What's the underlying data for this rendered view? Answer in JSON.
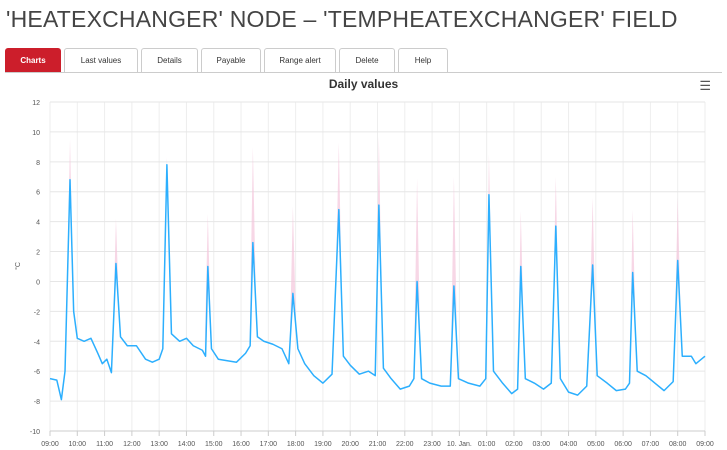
{
  "page": {
    "title": "'HEATEXCHANGER' NODE – 'TEMPHEATEXCHANGER' FIELD"
  },
  "tabs": [
    {
      "label": "Charts",
      "active": true
    },
    {
      "label": "Last values"
    },
    {
      "label": "Details"
    },
    {
      "label": "Payable"
    },
    {
      "label": "Range alert"
    },
    {
      "label": "Delete"
    },
    {
      "label": "Help"
    }
  ],
  "chart_data": {
    "type": "line",
    "title": "Daily values",
    "ylabel": "°C",
    "xlabel": "",
    "ylim": [
      -10,
      12
    ],
    "yticks": [
      12,
      10,
      8,
      6,
      4,
      2,
      0,
      -2,
      -4,
      -6,
      -8,
      -10
    ],
    "xticks": [
      "09:00",
      "10:00",
      "11:00",
      "12:00",
      "13:00",
      "14:00",
      "15:00",
      "16:00",
      "17:00",
      "18:00",
      "19:00",
      "20:00",
      "21:00",
      "22:00",
      "23:00",
      "10. Jan.",
      "01:00",
      "02:00",
      "03:00",
      "04:00",
      "05:00",
      "06:00",
      "07:00",
      "08:00",
      "09:00"
    ],
    "xrange": [
      "9 Jan 09:00",
      "10 Jan 09:00"
    ],
    "grid": true,
    "colors": {
      "line": "#2caffe",
      "range": "#f4c6dc"
    },
    "series": [
      {
        "points": [
          [
            "9 Jan 09:00",
            -6.5
          ],
          [
            "9 Jan 09:15",
            -6.6
          ],
          [
            "9 Jan 09:25",
            -7.9
          ],
          [
            "9 Jan 09:33",
            -6
          ],
          [
            "9 Jan 09:44",
            6.8
          ],
          [
            "9 Jan 09:52",
            -2
          ],
          [
            "9 Jan 10:00",
            -3.8
          ],
          [
            "9 Jan 10:15",
            -4
          ],
          [
            "9 Jan 10:30",
            -3.8
          ],
          [
            "9 Jan 10:45",
            -4.8
          ],
          [
            "9 Jan 10:55",
            -5.5
          ],
          [
            "9 Jan 11:05",
            -5.2
          ],
          [
            "9 Jan 11:15",
            -6.1
          ],
          [
            "9 Jan 11:25",
            1.2
          ],
          [
            "9 Jan 11:35",
            -3.7
          ],
          [
            "9 Jan 11:50",
            -4.3
          ],
          [
            "9 Jan 12:10",
            -4.3
          ],
          [
            "9 Jan 12:30",
            -5.2
          ],
          [
            "9 Jan 12:45",
            -5.4
          ],
          [
            "9 Jan 13:00",
            -5.2
          ],
          [
            "9 Jan 13:08",
            -4.5
          ],
          [
            "9 Jan 13:17",
            7.8
          ],
          [
            "9 Jan 13:27",
            -3.5
          ],
          [
            "9 Jan 13:45",
            -4
          ],
          [
            "9 Jan 14:00",
            -3.8
          ],
          [
            "9 Jan 14:15",
            -4.3
          ],
          [
            "9 Jan 14:35",
            -4.6
          ],
          [
            "9 Jan 14:42",
            -5
          ],
          [
            "9 Jan 14:47",
            1
          ],
          [
            "9 Jan 14:55",
            -4.5
          ],
          [
            "9 Jan 15:10",
            -5.2
          ],
          [
            "9 Jan 15:30",
            -5.3
          ],
          [
            "9 Jan 15:50",
            -5.4
          ],
          [
            "9 Jan 16:10",
            -4.8
          ],
          [
            "9 Jan 16:20",
            -4.3
          ],
          [
            "9 Jan 16:26",
            2.6
          ],
          [
            "9 Jan 16:36",
            -3.7
          ],
          [
            "9 Jan 16:50",
            -4
          ],
          [
            "9 Jan 17:10",
            -4.2
          ],
          [
            "9 Jan 17:30",
            -4.5
          ],
          [
            "9 Jan 17:45",
            -5.5
          ],
          [
            "9 Jan 17:54",
            -0.8
          ],
          [
            "9 Jan 18:05",
            -4.5
          ],
          [
            "9 Jan 18:20",
            -5.5
          ],
          [
            "9 Jan 18:40",
            -6.3
          ],
          [
            "9 Jan 19:00",
            -6.8
          ],
          [
            "9 Jan 19:20",
            -6.2
          ],
          [
            "9 Jan 19:35",
            4.8
          ],
          [
            "9 Jan 19:45",
            -5
          ],
          [
            "9 Jan 20:00",
            -5.6
          ],
          [
            "9 Jan 20:20",
            -6.2
          ],
          [
            "9 Jan 20:40",
            -6
          ],
          [
            "9 Jan 20:55",
            -6.3
          ],
          [
            "9 Jan 21:03",
            5.1
          ],
          [
            "9 Jan 21:13",
            -5.8
          ],
          [
            "9 Jan 21:30",
            -6.5
          ],
          [
            "9 Jan 21:50",
            -7.2
          ],
          [
            "9 Jan 22:10",
            -7
          ],
          [
            "9 Jan 22:20",
            -6.5
          ],
          [
            "9 Jan 22:27",
            0
          ],
          [
            "9 Jan 22:37",
            -6.5
          ],
          [
            "9 Jan 22:55",
            -6.8
          ],
          [
            "9 Jan 23:20",
            -7
          ],
          [
            "9 Jan 23:40",
            -7
          ],
          [
            "9 Jan 23:48",
            -0.3
          ],
          [
            "9 Jan 23:58",
            -6.5
          ],
          [
            "10 Jan 00:20",
            -6.8
          ],
          [
            "10 Jan 00:45",
            -7
          ],
          [
            "10 Jan 00:58",
            -6.5
          ],
          [
            "10 Jan 01:05",
            5.8
          ],
          [
            "10 Jan 01:15",
            -6
          ],
          [
            "10 Jan 01:35",
            -6.8
          ],
          [
            "10 Jan 01:55",
            -7.5
          ],
          [
            "10 Jan 02:08",
            -7.2
          ],
          [
            "10 Jan 02:15",
            1
          ],
          [
            "10 Jan 02:25",
            -6.5
          ],
          [
            "10 Jan 02:45",
            -6.8
          ],
          [
            "10 Jan 03:05",
            -7.2
          ],
          [
            "10 Jan 03:22",
            -6.8
          ],
          [
            "10 Jan 03:32",
            3.7
          ],
          [
            "10 Jan 03:42",
            -6.5
          ],
          [
            "10 Jan 04:00",
            -7.4
          ],
          [
            "10 Jan 04:20",
            -7.6
          ],
          [
            "10 Jan 04:40",
            -7
          ],
          [
            "10 Jan 04:53",
            1.1
          ],
          [
            "10 Jan 05:03",
            -6.3
          ],
          [
            "10 Jan 05:25",
            -6.8
          ],
          [
            "10 Jan 05:45",
            -7.3
          ],
          [
            "10 Jan 06:05",
            -7.2
          ],
          [
            "10 Jan 06:14",
            -6.8
          ],
          [
            "10 Jan 06:21",
            0.6
          ],
          [
            "10 Jan 06:31",
            -6
          ],
          [
            "10 Jan 06:50",
            -6.3
          ],
          [
            "10 Jan 07:10",
            -6.8
          ],
          [
            "10 Jan 07:30",
            -7.3
          ],
          [
            "10 Jan 07:50",
            -6.7
          ],
          [
            "10 Jan 08:00",
            1.4
          ],
          [
            "10 Jan 08:10",
            -5
          ],
          [
            "10 Jan 08:30",
            -5
          ],
          [
            "10 Jan 08:40",
            -5.5
          ],
          [
            "10 Jan 09:00",
            -5
          ]
        ]
      }
    ],
    "range_peaks": [
      [
        "9 Jan 09:44",
        9.5
      ],
      [
        "9 Jan 11:25",
        4.2
      ],
      [
        "9 Jan 13:17",
        8.3
      ],
      [
        "9 Jan 14:47",
        4.5
      ],
      [
        "9 Jan 16:26",
        9
      ],
      [
        "9 Jan 17:54",
        5
      ],
      [
        "9 Jan 19:35",
        9.3
      ],
      [
        "9 Jan 21:03",
        9.7
      ],
      [
        "9 Jan 22:27",
        6.9
      ],
      [
        "9 Jan 23:48",
        7
      ],
      [
        "10 Jan 01:05",
        8.5
      ],
      [
        "10 Jan 02:15",
        4.7
      ],
      [
        "10 Jan 03:32",
        7
      ],
      [
        "10 Jan 04:53",
        5.6
      ],
      [
        "10 Jan 06:21",
        4.8
      ],
      [
        "10 Jan 08:00",
        5.6
      ]
    ]
  }
}
